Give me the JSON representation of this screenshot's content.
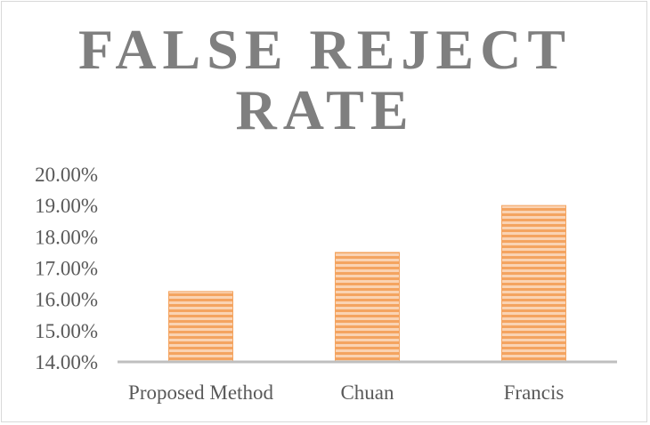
{
  "chart_data": {
    "type": "bar",
    "title_lines": [
      "FALSE REJECT",
      "RATE"
    ],
    "categories": [
      "Proposed Method",
      "Chuan",
      "Francis"
    ],
    "values": [
      16.25,
      17.5,
      19.0
    ],
    "ylim": [
      14,
      20
    ],
    "yticks": [
      14,
      15,
      16,
      17,
      18,
      19,
      20
    ],
    "ytick_labels": [
      "14.00%",
      "15.00%",
      "16.00%",
      "17.00%",
      "18.00%",
      "19.00%",
      "20.00%"
    ],
    "bar_color": "#f4a460",
    "bar_stripe_color": "#ed7d31",
    "axis_color": "#bfbfbf",
    "text_color": "#595959",
    "title_color": "#7f7f7f",
    "grid": false,
    "legend": "none"
  }
}
